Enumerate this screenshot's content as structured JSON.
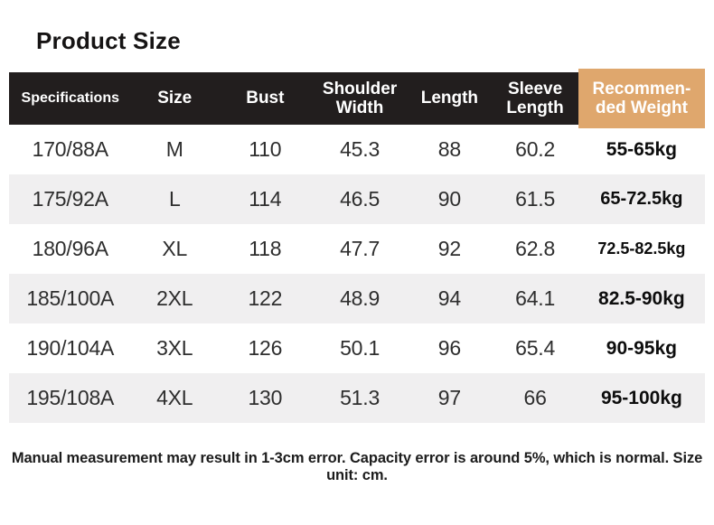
{
  "title": "Product Size",
  "table": {
    "headers": [
      {
        "lines": [
          "Specifications"
        ]
      },
      {
        "lines": [
          "Size"
        ]
      },
      {
        "lines": [
          "Bust"
        ]
      },
      {
        "lines": [
          "Shoulder",
          "Width"
        ]
      },
      {
        "lines": [
          "Length"
        ]
      },
      {
        "lines": [
          "Sleeve",
          "Length"
        ]
      },
      {
        "lines": [
          "Recommen-",
          "ded Weight"
        ]
      }
    ],
    "rows": [
      {
        "cells": [
          "170/88A",
          "M",
          "110",
          "45.3",
          "88",
          "60.2",
          "55-65kg"
        ]
      },
      {
        "cells": [
          "175/92A",
          "L",
          "114",
          "46.5",
          "90",
          "61.5",
          "65-72.5kg"
        ]
      },
      {
        "cells": [
          "180/96A",
          "XL",
          "118",
          "47.7",
          "92",
          "62.8",
          "72.5-82.5kg"
        ]
      },
      {
        "cells": [
          "185/100A",
          "2XL",
          "122",
          "48.9",
          "94",
          "64.1",
          "82.5-90kg"
        ]
      },
      {
        "cells": [
          "190/104A",
          "3XL",
          "126",
          "50.1",
          "96",
          "65.4",
          "90-95kg"
        ]
      },
      {
        "cells": [
          "195/108A",
          "4XL",
          "130",
          "51.3",
          "97",
          "66",
          "95-100kg"
        ]
      }
    ]
  },
  "footer_note": "Manual measurement may result in 1-3cm error. Capacity error is around 5%, which is normal. Size unit: cm.",
  "colors": {
    "header_bg": "#221e1e",
    "header_text": "#ffffff",
    "accent_tan": "#dfa76d",
    "row_alt_bg": "#f0eff0",
    "row_bg": "#ffffff",
    "body_text": "#2e2e2e",
    "weight_text": "#0d0d0d"
  }
}
